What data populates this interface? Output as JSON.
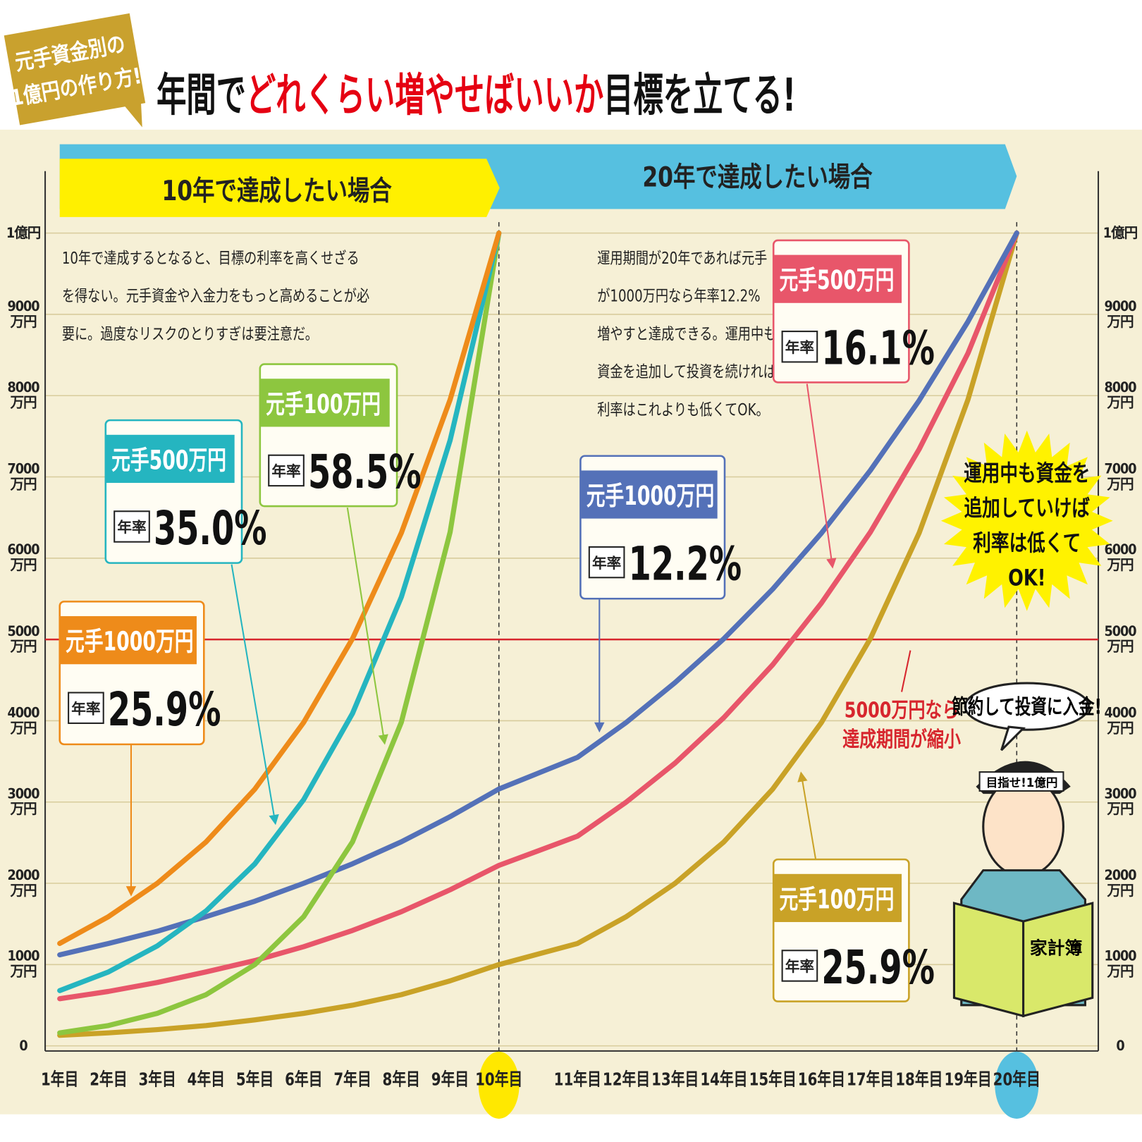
{
  "badge": [
    "元手資金別の",
    "1億円の作り方!"
  ],
  "title": {
    "part1": "年間で",
    "highlight": "どれくらい増やせばいいか",
    "part2": "目標を立てる!"
  },
  "chart_data": {
    "type": "line",
    "sections": [
      "10年で達成したい場合",
      "20年で達成したい場合"
    ],
    "notes": [
      [
        "10年で達成するとなると、目標の利率を高くせざる",
        "を得ない。元手資金や入金力をもっと高めることが必",
        "要に。過度なリスクのとりすぎは要注意だ。"
      ],
      [
        "運用期間が20年であれば元手",
        "が1000万円なら年率12.2%",
        "増やすと達成できる。運用中も",
        "資金を追加して投資を続ければ、",
        "利率はこれよりも低くてOK。"
      ]
    ],
    "categories": [
      "1年目",
      "2年目",
      "3年目",
      "4年目",
      "5年目",
      "6年目",
      "7年目",
      "8年目",
      "9年目",
      "10年目",
      "11年目",
      "12年目",
      "13年目",
      "14年目",
      "15年目",
      "16年目",
      "17年目",
      "18年目",
      "19年目",
      "20年目"
    ],
    "ylim": [
      0,
      10000
    ],
    "yticks": [
      0,
      {
        "value": 1000,
        "label": "1000万円"
      },
      {
        "value": 2000,
        "label": "2000万円"
      },
      {
        "value": 3000,
        "label": "3000万円"
      },
      {
        "value": 4000,
        "label": "4000万円"
      },
      {
        "value": 5000,
        "label": "5000万円"
      },
      {
        "value": 6000,
        "label": "6000万円"
      },
      {
        "value": 7000,
        "label": "7000万円"
      },
      {
        "value": 8000,
        "label": "8000万円"
      },
      {
        "value": 9000,
        "label": "9000万円"
      },
      {
        "value": 10000,
        "label": "1億円"
      }
    ],
    "grid": true,
    "rate_caption": "年率",
    "series": [
      {
        "name": "元手1000万円",
        "rate": "25.9%",
        "color": "#ee8b1a",
        "values": [
          1260,
          1590,
          2000,
          2510,
          3160,
          3980,
          5010,
          6310,
          7950,
          10000,
          null,
          null,
          null,
          null,
          null,
          null,
          null,
          null,
          null,
          null
        ]
      },
      {
        "name": "元手500万円",
        "rate": "35.0%",
        "color": "#25b5c0",
        "values": [
          680,
          910,
          1230,
          1660,
          2240,
          3030,
          4090,
          5520,
          7450,
          10000,
          null,
          null,
          null,
          null,
          null,
          null,
          null,
          null,
          null,
          null
        ]
      },
      {
        "name": "元手100万円",
        "rate": "58.5%",
        "color": "#8dc63f",
        "values": [
          160,
          250,
          400,
          630,
          1000,
          1590,
          2510,
          3980,
          6320,
          10000,
          null,
          null,
          null,
          null,
          null,
          null,
          null,
          null,
          null,
          null
        ]
      },
      {
        "name": "元手1000万円",
        "rate": "12.2%",
        "color": "#5471b8",
        "values": [
          1120,
          1260,
          1410,
          1590,
          1780,
          2000,
          2240,
          2510,
          2820,
          3160,
          3550,
          3980,
          4470,
          5010,
          5620,
          6310,
          7080,
          7940,
          8910,
          10000
        ]
      },
      {
        "name": "元手500万円",
        "rate": "16.1%",
        "color": "#e8566a",
        "values": [
          580,
          670,
          780,
          910,
          1050,
          1220,
          1420,
          1650,
          1920,
          2220,
          2580,
          3000,
          3480,
          4040,
          4690,
          5450,
          6320,
          7340,
          8520,
          10000
        ]
      },
      {
        "name": "元手100万円",
        "rate": "25.9%",
        "color": "#c9a227",
        "values": [
          130,
          160,
          200,
          250,
          320,
          400,
          500,
          630,
          800,
          1000,
          1260,
          1590,
          2000,
          2510,
          3160,
          3980,
          5010,
          6310,
          7950,
          10000
        ]
      }
    ],
    "reference_line": {
      "value": 5000,
      "color": "#d7262e",
      "label": [
        "5000万円なら",
        "達成期間が縮小"
      ]
    }
  },
  "callout": [
    "運用中も資金を",
    "追加していけば",
    "利率は低くて",
    "OK!"
  ],
  "illustration": {
    "speech": "節約して投資に入金!",
    "headband": "目指せ!1億円",
    "book": "家計簿"
  }
}
